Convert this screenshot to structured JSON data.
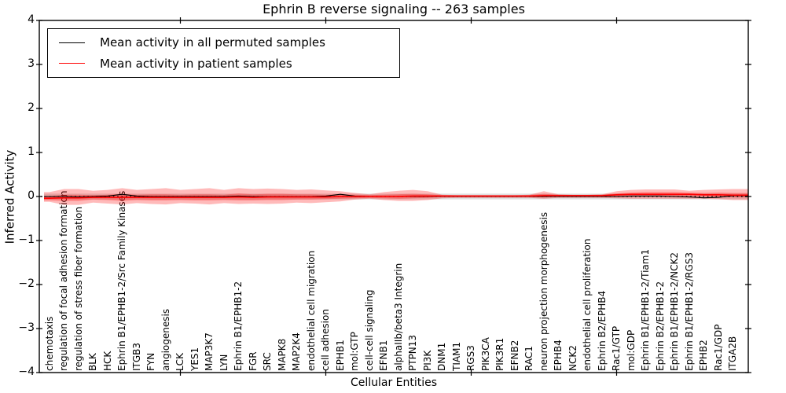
{
  "title": "Ephrin B reverse signaling -- 263 samples",
  "legend": {
    "items": [
      {
        "name": "permuted-mean",
        "label": "Mean activity in all permuted samples",
        "color": "#000000",
        "thickness": 1.2
      },
      {
        "name": "patient-mean",
        "label": "Mean activity in patient samples",
        "color": "#ff0000",
        "thickness": 1.6
      }
    ]
  },
  "chart_data": {
    "type": "line",
    "title": "Ephrin B reverse signaling -- 263 samples",
    "xlabel": "Cellular Entities",
    "ylabel": "Inferred Activity",
    "ylim": [
      -4,
      4
    ],
    "ytick_labels": [
      "4",
      "3",
      "2",
      "1",
      "0",
      "−1",
      "−2",
      "−3",
      "−4"
    ],
    "ytick_values": [
      4,
      3,
      2,
      1,
      0,
      -1,
      -2,
      -3,
      -4
    ],
    "xtick_major_values": [
      10,
      20,
      30,
      40
    ],
    "grid": false,
    "legend_position": "upper left",
    "zero_line": 0,
    "categories": [
      "chemotaxis",
      "regulation of focal adhesion formation",
      "regulation of stress fiber formation",
      "BLK",
      "HCK",
      "Ephrin B1/EPHB1-2/Src Family Kinases",
      "ITGB3",
      "FYN",
      "angiogenesis",
      "LCK",
      "YES1",
      "MAP3K7",
      "LYN",
      "Ephrin B1/EPHB1-2",
      "FGR",
      "SRC",
      "MAPK8",
      "MAP2K4",
      "endothelial cell migration",
      "cell adhesion",
      "EPHB1",
      "mol:GTP",
      "cell-cell signaling",
      "EFNB1",
      "alphaIIb/beta3 Integrin",
      "PTPN13",
      "PI3K",
      "DNM1",
      "TIAM1",
      "RGS3",
      "PIK3CA",
      "PIK3R1",
      "EFNB2",
      "RAC1",
      "neuron projection morphogenesis",
      "EPHB4",
      "NCK2",
      "endothelial cell proliferation",
      "Ephrin B2/EPHB4",
      "Rac1/GTP",
      "mol:GDP",
      "Ephrin B1/EPHB1-2/Tiam1",
      "Ephrin B2/EPHB1-2",
      "Ephrin B1/EPHB1-2/NCK2",
      "Ephrin B1/EPHB1-2/RGS3",
      "EPHB2",
      "Rac1/GDP",
      "ITGA2B"
    ],
    "series": [
      {
        "name": "Mean activity in all permuted samples",
        "color": "#000000",
        "values": [
          0.0,
          0.0,
          -0.01,
          0.0,
          0.01,
          0.05,
          0.01,
          0.0,
          0.0,
          0.0,
          0.0,
          0.0,
          0.0,
          0.01,
          0.0,
          0.0,
          0.0,
          0.0,
          0.0,
          0.01,
          0.05,
          0.01,
          0.0,
          0.0,
          0.0,
          0.0,
          0.0,
          0.0,
          0.0,
          0.0,
          0.0,
          0.0,
          0.0,
          0.0,
          0.0,
          0.0,
          0.0,
          0.0,
          0.0,
          0.0,
          0.01,
          0.01,
          0.01,
          0.0,
          -0.01,
          -0.03,
          -0.02,
          0.02
        ]
      },
      {
        "name": "Mean activity in patient samples",
        "color": "#ff0000",
        "values": [
          -0.04,
          -0.03,
          -0.03,
          -0.02,
          -0.02,
          -0.02,
          -0.02,
          -0.02,
          -0.02,
          -0.02,
          -0.02,
          -0.02,
          -0.02,
          -0.01,
          -0.02,
          -0.01,
          -0.01,
          -0.01,
          -0.01,
          -0.01,
          0.0,
          0.0,
          0.0,
          0.0,
          0.0,
          0.01,
          0.01,
          0.01,
          0.01,
          0.01,
          0.01,
          0.01,
          0.01,
          0.01,
          0.02,
          0.02,
          0.02,
          0.02,
          0.02,
          0.04,
          0.05,
          0.05,
          0.05,
          0.05,
          0.05,
          0.04,
          0.04,
          0.03
        ]
      }
    ],
    "bands": {
      "patient_outer": {
        "color": "#ff0000",
        "opacity": 0.27,
        "upper": [
          0.1,
          0.17,
          0.17,
          0.13,
          0.15,
          0.19,
          0.15,
          0.17,
          0.19,
          0.15,
          0.17,
          0.19,
          0.15,
          0.19,
          0.17,
          0.18,
          0.17,
          0.15,
          0.16,
          0.14,
          0.12,
          0.08,
          0.05,
          0.1,
          0.13,
          0.15,
          0.12,
          0.04,
          0.03,
          0.03,
          0.03,
          0.03,
          0.03,
          0.04,
          0.12,
          0.05,
          0.04,
          0.04,
          0.05,
          0.12,
          0.15,
          0.16,
          0.16,
          0.16,
          0.13,
          0.15,
          0.16,
          0.17
        ],
        "lower": [
          -0.12,
          -0.19,
          -0.19,
          -0.14,
          -0.16,
          -0.18,
          -0.15,
          -0.17,
          -0.18,
          -0.15,
          -0.16,
          -0.18,
          -0.15,
          -0.17,
          -0.16,
          -0.17,
          -0.16,
          -0.14,
          -0.15,
          -0.13,
          -0.11,
          -0.07,
          -0.05,
          -0.08,
          -0.1,
          -0.1,
          -0.08,
          -0.04,
          -0.03,
          -0.03,
          -0.03,
          -0.03,
          -0.03,
          -0.03,
          -0.05,
          -0.03,
          -0.03,
          -0.03,
          -0.03,
          -0.04,
          -0.05,
          -0.05,
          -0.05,
          -0.05,
          -0.05,
          -0.05,
          -0.06,
          -0.08
        ]
      },
      "patient_inner": {
        "color": "#ff0000",
        "opacity": 0.3,
        "half_width": [
          0.05,
          0.07,
          0.07,
          0.05,
          0.06,
          0.08,
          0.06,
          0.07,
          0.07,
          0.06,
          0.07,
          0.07,
          0.06,
          0.08,
          0.07,
          0.07,
          0.07,
          0.06,
          0.06,
          0.05,
          0.05,
          0.04,
          0.03,
          0.04,
          0.05,
          0.05,
          0.04,
          0.02,
          0.015,
          0.015,
          0.015,
          0.015,
          0.015,
          0.02,
          0.04,
          0.02,
          0.015,
          0.015,
          0.02,
          0.03,
          0.04,
          0.05,
          0.05,
          0.05,
          0.04,
          0.04,
          0.05,
          0.05
        ]
      },
      "permuted": {
        "color": "#888888",
        "opacity": 0.28,
        "half_width": 0.065
      }
    }
  }
}
